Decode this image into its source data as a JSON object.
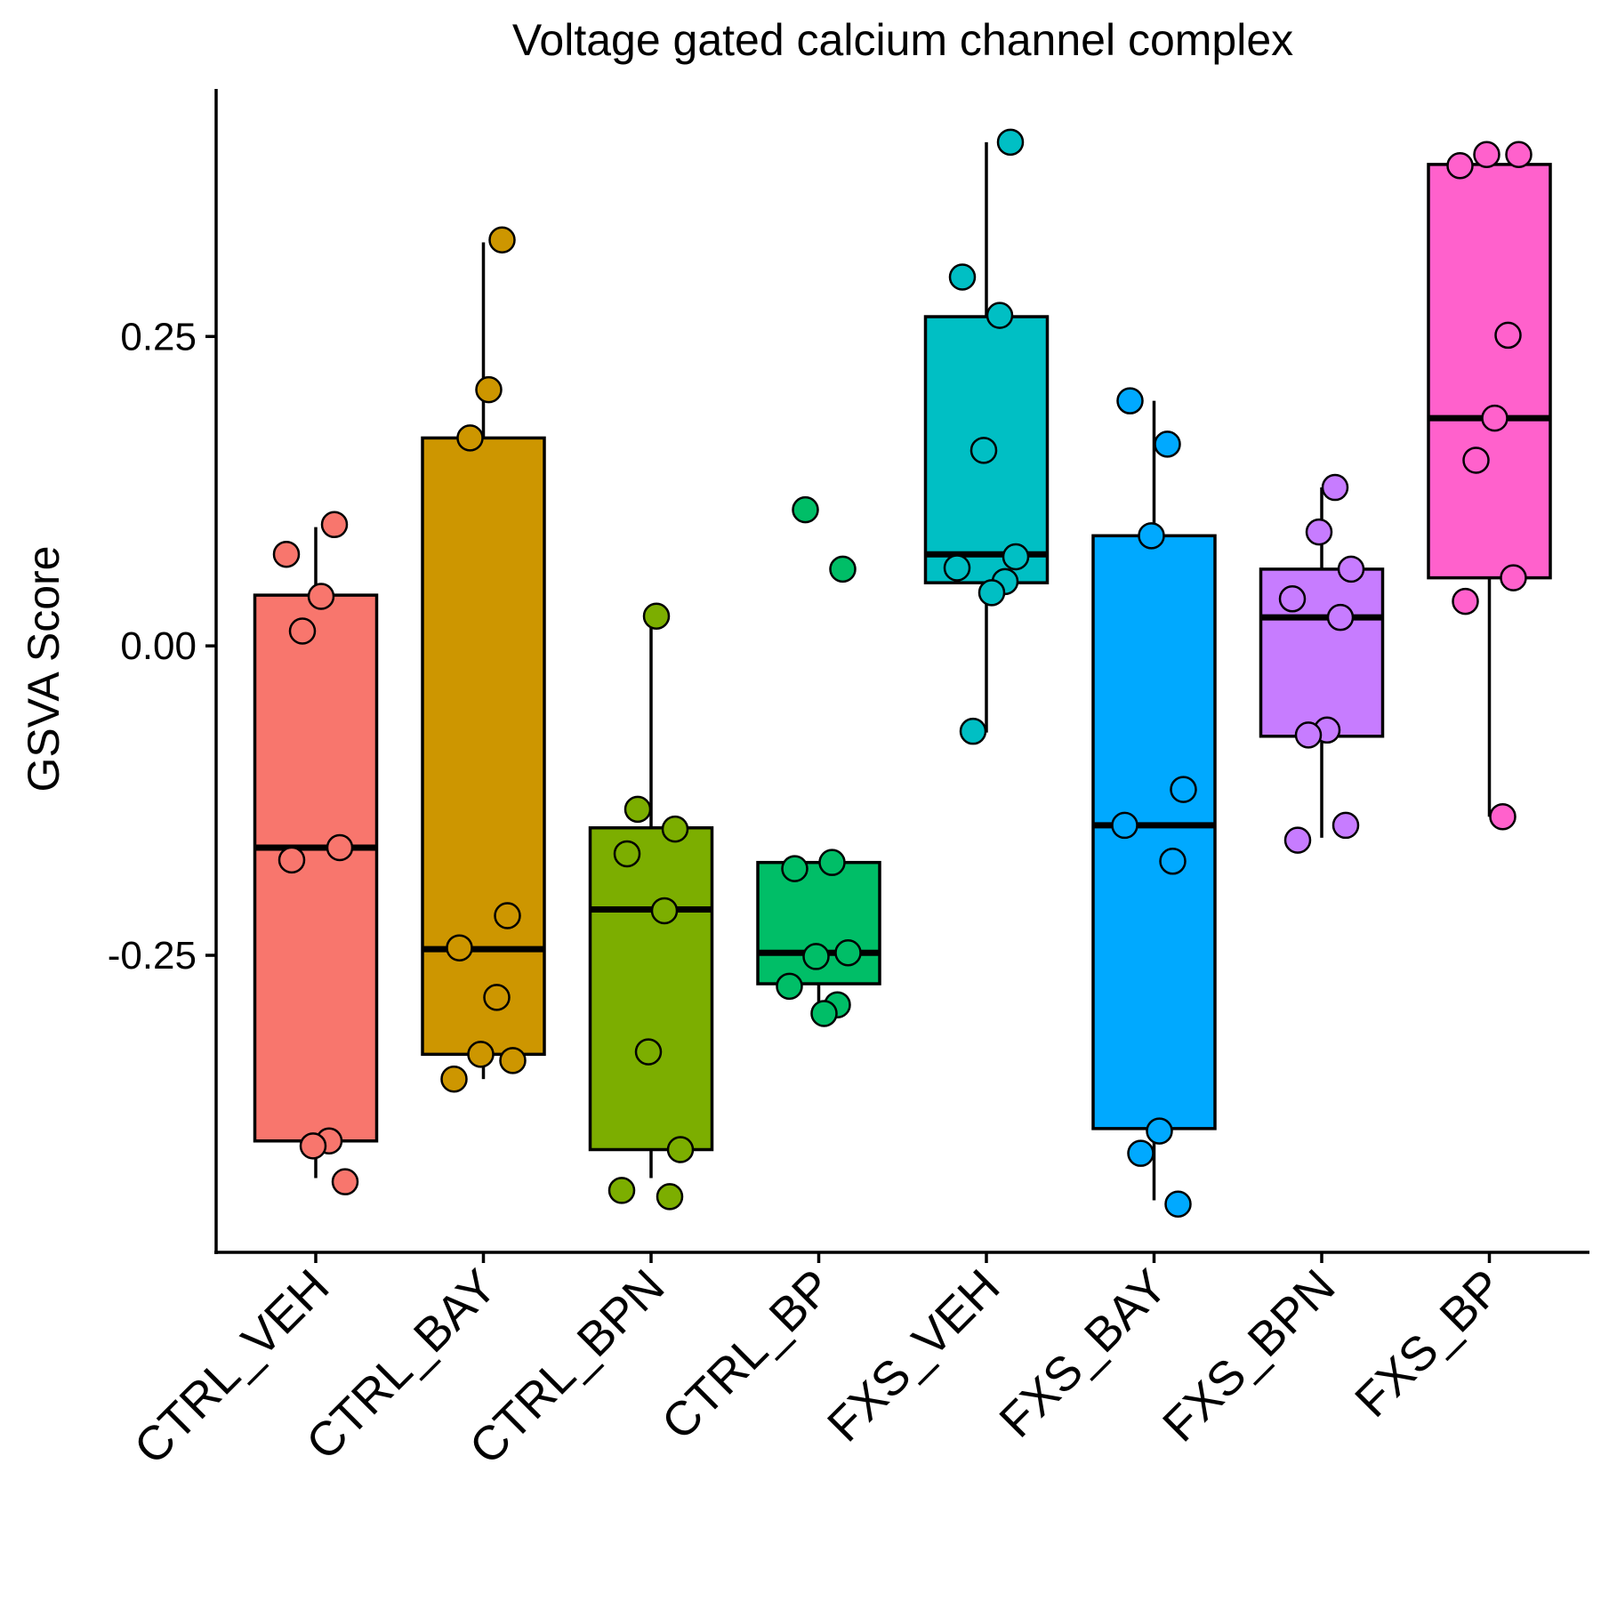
{
  "chart_data": {
    "type": "box",
    "title": "Voltage gated calcium channel complex",
    "xlabel": "",
    "ylabel": "GSVA Score",
    "ylim": [
      -0.49,
      0.45
    ],
    "yticks": [
      0.25,
      0.0,
      -0.25
    ],
    "ytick_labels": [
      "0.25",
      "0.00",
      "-0.25"
    ],
    "categories": [
      "CTRL_VEH",
      "CTRL_BAY",
      "CTRL_BPN",
      "CTRL_BP",
      "FXS_VEH",
      "FXS_BAY",
      "FXS_BPN",
      "FXS_BP"
    ],
    "colors": [
      "#F8766D",
      "#CD9600",
      "#7CAE00",
      "#00BE67",
      "#00BFC4",
      "#00A9FF",
      "#C77CFF",
      "#FF61CC"
    ],
    "groups": [
      {
        "name": "CTRL_VEH",
        "whisker_low": -0.43,
        "q1": -0.4,
        "median": -0.163,
        "q3": 0.041,
        "whisker_high": 0.096,
        "points": [
          0.074,
          0.098,
          0.04,
          0.012,
          -0.163,
          -0.173,
          -0.4,
          -0.404,
          -0.433
        ]
      },
      {
        "name": "CTRL_BAY",
        "whisker_low": -0.35,
        "q1": -0.33,
        "median": -0.245,
        "q3": 0.168,
        "whisker_high": 0.326,
        "points": [
          0.328,
          0.207,
          0.168,
          -0.218,
          -0.244,
          -0.284,
          -0.33,
          -0.335,
          -0.35
        ]
      },
      {
        "name": "CTRL_BPN",
        "whisker_low": -0.43,
        "q1": -0.407,
        "median": -0.213,
        "q3": -0.147,
        "whisker_high": 0.025,
        "points": [
          0.024,
          -0.132,
          -0.148,
          -0.168,
          -0.214,
          -0.328,
          -0.407,
          -0.44,
          -0.445
        ]
      },
      {
        "name": "CTRL_BP",
        "whisker_low": -0.295,
        "q1": -0.273,
        "median": -0.248,
        "q3": -0.175,
        "whisker_high": -0.175,
        "points": [
          0.11,
          0.062,
          -0.18,
          -0.175,
          -0.251,
          -0.248,
          -0.275,
          -0.29,
          -0.297
        ]
      },
      {
        "name": "FXS_VEH",
        "whisker_low": -0.07,
        "q1": 0.051,
        "median": 0.074,
        "q3": 0.266,
        "whisker_high": 0.407,
        "points": [
          0.407,
          0.298,
          0.267,
          0.158,
          0.072,
          0.063,
          0.052,
          0.043,
          -0.069
        ]
      },
      {
        "name": "FXS_BAY",
        "whisker_low": -0.448,
        "q1": -0.39,
        "median": -0.145,
        "q3": 0.089,
        "whisker_high": 0.198,
        "points": [
          0.198,
          0.163,
          0.089,
          -0.116,
          -0.145,
          -0.174,
          -0.392,
          -0.41,
          -0.451
        ]
      },
      {
        "name": "FXS_BPN",
        "whisker_low": -0.155,
        "q1": -0.073,
        "median": 0.023,
        "q3": 0.062,
        "whisker_high": 0.128,
        "points": [
          0.128,
          0.092,
          0.062,
          0.038,
          0.023,
          -0.068,
          -0.072,
          -0.145,
          -0.157
        ]
      },
      {
        "name": "FXS_BP",
        "whisker_low": -0.138,
        "q1": 0.055,
        "median": 0.184,
        "q3": 0.389,
        "whisker_high": 0.398,
        "points": [
          0.397,
          0.397,
          0.388,
          0.251,
          0.184,
          0.15,
          0.055,
          0.036,
          -0.138
        ]
      }
    ]
  }
}
